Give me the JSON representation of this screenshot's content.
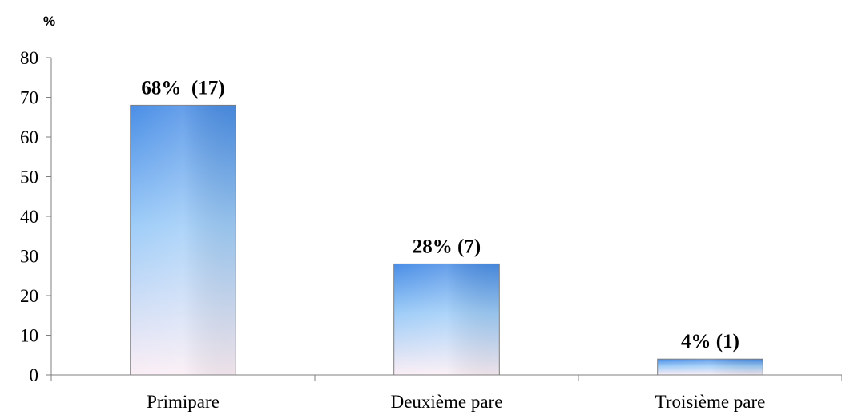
{
  "chart_data": {
    "type": "bar",
    "unit_label": "%",
    "categories": [
      "Primipare",
      "Deuxième pare",
      "Troisième pare"
    ],
    "values": [
      68,
      28,
      4
    ],
    "data_labels": [
      "68%  (17)",
      "28% (7)",
      "4% (1)"
    ],
    "title": "",
    "xlabel": "",
    "ylabel": "",
    "ylim": [
      0,
      80
    ],
    "yticks": [
      0,
      10,
      20,
      30,
      40,
      50,
      60,
      70,
      80
    ],
    "grid": false,
    "legend": "none",
    "colors": {
      "bar_top": "#4a8ee6",
      "bar_mid": "#9fcdf8",
      "bar_bottom": "#fbeef5",
      "axis": "#7f7f7f"
    }
  }
}
